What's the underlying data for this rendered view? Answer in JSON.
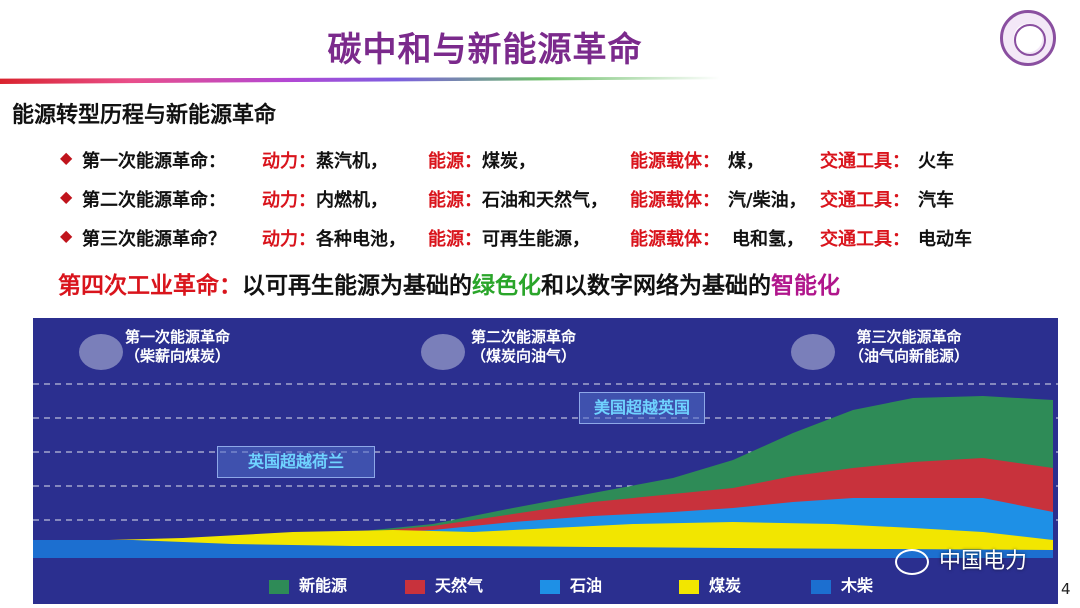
{
  "title": "碳中和与新能源革命",
  "subtitle": "能源转型历程与新能源革命",
  "revolutions": [
    {
      "name": "第一次能源革命：",
      "power_label": "动力：",
      "power": "蒸汽机，",
      "energy_label": "能源：",
      "energy": "煤炭，",
      "carrier_label": "能源载体：",
      "carrier": "煤，",
      "transport_label": "交通工具：",
      "transport": "火车"
    },
    {
      "name": "第二次能源革命：",
      "power_label": "动力：",
      "power": "内燃机，",
      "energy_label": "能源：",
      "energy": "石油和天然气，",
      "carrier_label": "能源载体：",
      "carrier": "汽/柴油，",
      "transport_label": "交通工具：",
      "transport": "汽车"
    },
    {
      "name": "第三次能源革命？",
      "power_label": "动力：",
      "power": "各种电池，",
      "energy_label": "能源：",
      "energy": "可再生能源，",
      "carrier_label": "能源载体：",
      "carrier": "电和氢，",
      "transport_label": "交通工具：",
      "transport": "电动车"
    }
  ],
  "fourth": {
    "lead": "第四次工业革命：",
    "part1": "以可再生能源为基础的",
    "green": "绿色化",
    "part2": "和以数字网络为基础的",
    "smart": "智能化"
  },
  "eras": [
    {
      "line1": "第一次能源革命",
      "line2": "（柴薪向煤炭）"
    },
    {
      "line1": "第二次能源革命",
      "line2": "（煤炭向油气）"
    },
    {
      "line1": "第三次能源革命",
      "line2": "（油气向新能源）"
    }
  ],
  "events": {
    "us_over_uk": "美国超越英国",
    "uk_over_nl": "英国超越荷兰"
  },
  "legend": [
    {
      "label": "新能源",
      "color": "#2e8b57"
    },
    {
      "label": "天然气",
      "color": "#c8323c"
    },
    {
      "label": "石油",
      "color": "#1e90e6"
    },
    {
      "label": "煤炭",
      "color": "#f2e600"
    },
    {
      "label": "木柴",
      "color": "#1c6fd0"
    }
  ],
  "watermark": "中国电力",
  "page_number": "4"
}
